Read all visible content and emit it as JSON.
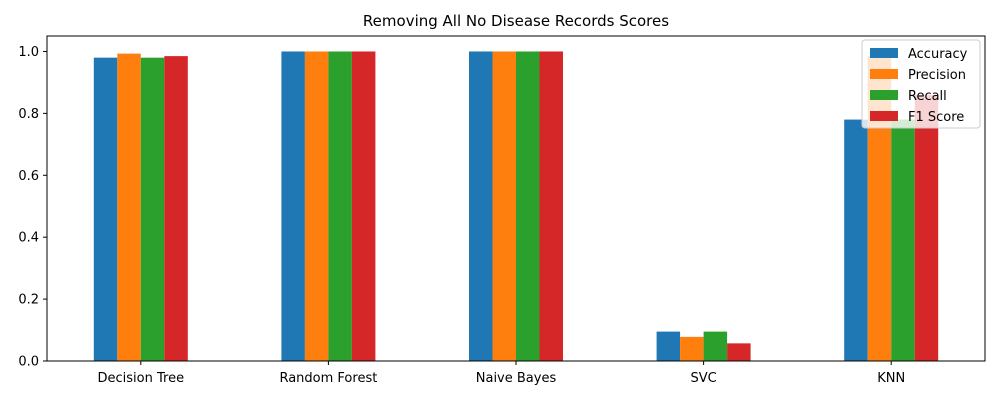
{
  "chart_data": {
    "type": "bar",
    "title": "Removing All No Disease Records Scores",
    "xlabel": "",
    "ylabel": "",
    "categories": [
      "Decision Tree",
      "Random Forest",
      "Naive Bayes",
      "SVC",
      "KNN"
    ],
    "series": [
      {
        "name": "Accuracy",
        "color": "#1f77b4",
        "values": [
          0.98,
          1.0,
          1.0,
          0.095,
          0.78
        ]
      },
      {
        "name": "Precision",
        "color": "#ff7f0e",
        "values": [
          0.993,
          1.0,
          1.0,
          0.078,
          0.985
        ]
      },
      {
        "name": "Recall",
        "color": "#2ca02c",
        "values": [
          0.98,
          1.0,
          1.0,
          0.095,
          0.78
        ]
      },
      {
        "name": "F1 Score",
        "color": "#d62728",
        "values": [
          0.985,
          1.0,
          1.0,
          0.057,
          0.86
        ]
      }
    ],
    "ylim": [
      0,
      1.05
    ],
    "yticks": [
      "0.0",
      "0.2",
      "0.4",
      "0.6",
      "0.8",
      "1.0"
    ],
    "grid": false,
    "legend_position": "top-right"
  }
}
